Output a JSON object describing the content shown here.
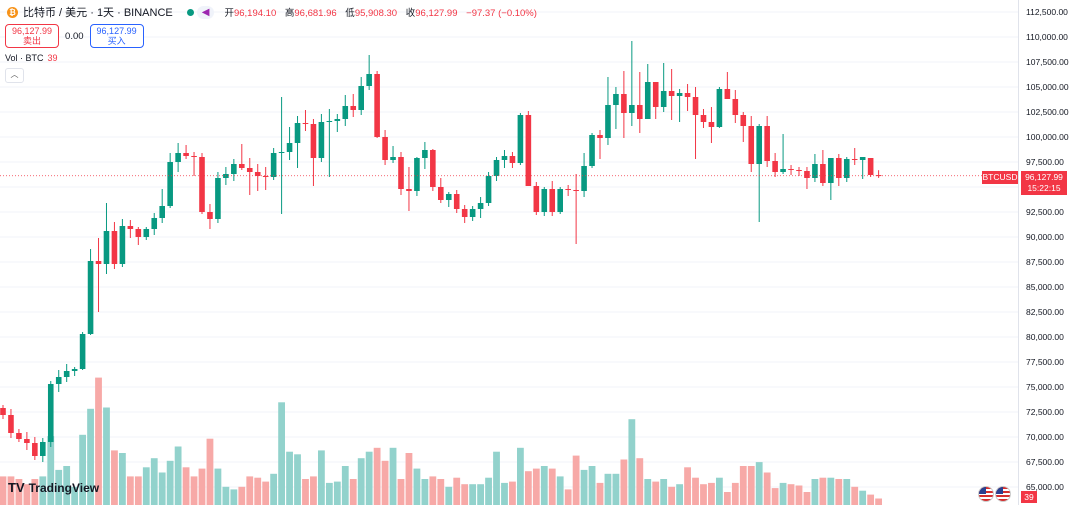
{
  "header": {
    "coin_icon": "bitcoin-icon",
    "symbol": "比特币 / 美元 · 1天 · BINANCE",
    "status_color": "#089981",
    "ohlc": [
      {
        "label": "开",
        "value": "96,194.10"
      },
      {
        "label": "高",
        "value": "96,681.96"
      },
      {
        "label": "低",
        "value": "95,908.30"
      },
      {
        "label": "收",
        "value": "96,127.99"
      }
    ],
    "change": "−97.37 (−0.10%)"
  },
  "trade": {
    "sell_price": "96,127.99",
    "sell_label": "卖出",
    "spread": "0.00",
    "buy_price": "96,127.99",
    "buy_label": "买入"
  },
  "volume_legend": {
    "label": "Vol · BTC",
    "value": "39"
  },
  "price_tag": {
    "symbol": "BTCUSD",
    "price": "96,127.99",
    "countdown": "15:22:15"
  },
  "volume_tag": "39",
  "logo": {
    "mark": "TV",
    "text": "TradingView"
  },
  "colors": {
    "up": "#089981",
    "down": "#f23645",
    "up_volume": "#92d2cc",
    "down_volume": "#f7a9a7",
    "grid": "#f0f3fa"
  },
  "chart_data": {
    "type": "candlestick",
    "series": "BTC/USD 1D",
    "y_ticks": [
      "112,500.00",
      "110,000.00",
      "107,500.00",
      "105,000.00",
      "102,500.00",
      "100,000.00",
      "97,500.00",
      "95,000.00",
      "92,500.00",
      "90,000.00",
      "87,500.00",
      "85,000.00",
      "82,500.00",
      "80,000.00",
      "77,500.00",
      "75,000.00",
      "72,500.00",
      "70,000.00",
      "67,500.00",
      "65,000.00"
    ],
    "ylim": [
      63200,
      113700
    ],
    "last_price": 96127.99,
    "candles": [
      {
        "o": 72900,
        "h": 73200,
        "l": 71800,
        "c": 72200,
        "v": 0.22
      },
      {
        "o": 72200,
        "h": 72800,
        "l": 69900,
        "c": 70400,
        "v": 0.22
      },
      {
        "o": 70400,
        "h": 70800,
        "l": 69500,
        "c": 69800,
        "v": 0.2
      },
      {
        "o": 69800,
        "h": 70500,
        "l": 68700,
        "c": 69400,
        "v": 0.16
      },
      {
        "o": 69400,
        "h": 70000,
        "l": 67700,
        "c": 68100,
        "v": 0.2
      },
      {
        "o": 68100,
        "h": 69900,
        "l": 67500,
        "c": 69500,
        "v": 0.22
      },
      {
        "o": 69500,
        "h": 75600,
        "l": 69000,
        "c": 75300,
        "v": 0.53
      },
      {
        "o": 75300,
        "h": 76700,
        "l": 74500,
        "c": 76000,
        "v": 0.27
      },
      {
        "o": 76000,
        "h": 77300,
        "l": 75500,
        "c": 76600,
        "v": 0.3
      },
      {
        "o": 76600,
        "h": 77000,
        "l": 76100,
        "c": 76800,
        "v": 0.14
      },
      {
        "o": 76800,
        "h": 80500,
        "l": 76700,
        "c": 80300,
        "v": 0.54
      },
      {
        "o": 80300,
        "h": 88800,
        "l": 80200,
        "c": 87600,
        "v": 0.74
      },
      {
        "o": 87600,
        "h": 89900,
        "l": 82500,
        "c": 87300,
        "v": 0.98
      },
      {
        "o": 87300,
        "h": 93400,
        "l": 86300,
        "c": 90600,
        "v": 0.75
      },
      {
        "o": 90600,
        "h": 91500,
        "l": 86800,
        "c": 87300,
        "v": 0.42
      },
      {
        "o": 87300,
        "h": 91800,
        "l": 87000,
        "c": 91100,
        "v": 0.4
      },
      {
        "o": 91100,
        "h": 91700,
        "l": 89900,
        "c": 90800,
        "v": 0.22
      },
      {
        "o": 90800,
        "h": 91000,
        "l": 89200,
        "c": 90000,
        "v": 0.22
      },
      {
        "o": 90000,
        "h": 91000,
        "l": 89700,
        "c": 90800,
        "v": 0.29
      },
      {
        "o": 90800,
        "h": 92400,
        "l": 90200,
        "c": 91900,
        "v": 0.36
      },
      {
        "o": 91900,
        "h": 94800,
        "l": 91400,
        "c": 93100,
        "v": 0.25
      },
      {
        "o": 93100,
        "h": 98400,
        "l": 92900,
        "c": 97500,
        "v": 0.34
      },
      {
        "o": 97500,
        "h": 99400,
        "l": 96500,
        "c": 98400,
        "v": 0.45
      },
      {
        "o": 98400,
        "h": 99200,
        "l": 97800,
        "c": 98100,
        "v": 0.29
      },
      {
        "o": 98100,
        "h": 98500,
        "l": 96100,
        "c": 98000,
        "v": 0.22
      },
      {
        "o": 98000,
        "h": 98400,
        "l": 92300,
        "c": 92500,
        "v": 0.28
      },
      {
        "o": 92500,
        "h": 93300,
        "l": 90800,
        "c": 91800,
        "v": 0.51
      },
      {
        "o": 91800,
        "h": 96500,
        "l": 91400,
        "c": 95900,
        "v": 0.28
      },
      {
        "o": 95900,
        "h": 97000,
        "l": 95200,
        "c": 96300,
        "v": 0.14
      },
      {
        "o": 96300,
        "h": 97800,
        "l": 95600,
        "c": 97300,
        "v": 0.12
      },
      {
        "o": 97300,
        "h": 99300,
        "l": 96700,
        "c": 96900,
        "v": 0.14
      },
      {
        "o": 96900,
        "h": 97900,
        "l": 94200,
        "c": 96500,
        "v": 0.22
      },
      {
        "o": 96500,
        "h": 97300,
        "l": 94600,
        "c": 96100,
        "v": 0.21
      },
      {
        "o": 96100,
        "h": 97000,
        "l": 94700,
        "c": 96000,
        "v": 0.18
      },
      {
        "o": 96000,
        "h": 98900,
        "l": 95700,
        "c": 98400,
        "v": 0.24
      },
      {
        "o": 98400,
        "h": 104000,
        "l": 92300,
        "c": 98500,
        "v": 0.79
      },
      {
        "o": 98500,
        "h": 101000,
        "l": 97700,
        "c": 99400,
        "v": 0.41
      },
      {
        "o": 99400,
        "h": 102100,
        "l": 96900,
        "c": 101400,
        "v": 0.39
      },
      {
        "o": 101400,
        "h": 102700,
        "l": 100600,
        "c": 101300,
        "v": 0.2
      },
      {
        "o": 101300,
        "h": 101800,
        "l": 95100,
        "c": 97900,
        "v": 0.22
      },
      {
        "o": 97900,
        "h": 102300,
        "l": 97500,
        "c": 101500,
        "v": 0.42
      },
      {
        "o": 101500,
        "h": 102800,
        "l": 96000,
        "c": 101600,
        "v": 0.17
      },
      {
        "o": 101600,
        "h": 102300,
        "l": 100500,
        "c": 101800,
        "v": 0.18
      },
      {
        "o": 101800,
        "h": 104200,
        "l": 101100,
        "c": 103100,
        "v": 0.3
      },
      {
        "o": 103100,
        "h": 104300,
        "l": 102000,
        "c": 102700,
        "v": 0.2
      },
      {
        "o": 102700,
        "h": 106000,
        "l": 102200,
        "c": 105100,
        "v": 0.36
      },
      {
        "o": 105100,
        "h": 108200,
        "l": 104700,
        "c": 106300,
        "v": 0.41
      },
      {
        "o": 106300,
        "h": 106600,
        "l": 99900,
        "c": 100000,
        "v": 0.44
      },
      {
        "o": 100000,
        "h": 100700,
        "l": 97200,
        "c": 97700,
        "v": 0.34
      },
      {
        "o": 97700,
        "h": 99100,
        "l": 97400,
        "c": 98000,
        "v": 0.44
      },
      {
        "o": 98000,
        "h": 98500,
        "l": 94200,
        "c": 94800,
        "v": 0.2
      },
      {
        "o": 94800,
        "h": 97000,
        "l": 92600,
        "c": 94600,
        "v": 0.4
      },
      {
        "o": 94600,
        "h": 98000,
        "l": 94100,
        "c": 97900,
        "v": 0.28
      },
      {
        "o": 97900,
        "h": 99500,
        "l": 96800,
        "c": 98700,
        "v": 0.2
      },
      {
        "o": 98700,
        "h": 98800,
        "l": 94600,
        "c": 95000,
        "v": 0.22
      },
      {
        "o": 95000,
        "h": 95900,
        "l": 93400,
        "c": 93700,
        "v": 0.2
      },
      {
        "o": 93700,
        "h": 94500,
        "l": 93000,
        "c": 94300,
        "v": 0.14
      },
      {
        "o": 94300,
        "h": 94700,
        "l": 92400,
        "c": 92800,
        "v": 0.21
      },
      {
        "o": 92800,
        "h": 93200,
        "l": 91400,
        "c": 92000,
        "v": 0.16
      },
      {
        "o": 92000,
        "h": 93100,
        "l": 91600,
        "c": 92800,
        "v": 0.16
      },
      {
        "o": 92800,
        "h": 94000,
        "l": 91900,
        "c": 93400,
        "v": 0.16
      },
      {
        "o": 93400,
        "h": 96500,
        "l": 93100,
        "c": 96100,
        "v": 0.21
      },
      {
        "o": 96100,
        "h": 98000,
        "l": 95600,
        "c": 97700,
        "v": 0.41
      },
      {
        "o": 97700,
        "h": 98700,
        "l": 96900,
        "c": 98100,
        "v": 0.17
      },
      {
        "o": 98100,
        "h": 98500,
        "l": 96900,
        "c": 97400,
        "v": 0.18
      },
      {
        "o": 97400,
        "h": 102400,
        "l": 97200,
        "c": 102200,
        "v": 0.44
      },
      {
        "o": 102200,
        "h": 102600,
        "l": 95100,
        "c": 95100,
        "v": 0.26
      },
      {
        "o": 95100,
        "h": 95500,
        "l": 92200,
        "c": 92500,
        "v": 0.28
      },
      {
        "o": 92500,
        "h": 95000,
        "l": 92100,
        "c": 94800,
        "v": 0.3
      },
      {
        "o": 94800,
        "h": 95600,
        "l": 92100,
        "c": 92500,
        "v": 0.28
      },
      {
        "o": 92500,
        "h": 95000,
        "l": 92300,
        "c": 94800,
        "v": 0.22
      },
      {
        "o": 94800,
        "h": 95200,
        "l": 94100,
        "c": 94700,
        "v": 0.12
      },
      {
        "o": 94700,
        "h": 96300,
        "l": 89300,
        "c": 94600,
        "v": 0.38
      },
      {
        "o": 94600,
        "h": 98400,
        "l": 94000,
        "c": 97100,
        "v": 0.27
      },
      {
        "o": 97100,
        "h": 100400,
        "l": 96900,
        "c": 100200,
        "v": 0.3
      },
      {
        "o": 100200,
        "h": 100700,
        "l": 97800,
        "c": 99900,
        "v": 0.17
      },
      {
        "o": 99900,
        "h": 106000,
        "l": 99200,
        "c": 103200,
        "v": 0.24
      },
      {
        "o": 103200,
        "h": 105000,
        "l": 100800,
        "c": 104300,
        "v": 0.24
      },
      {
        "o": 104300,
        "h": 106600,
        "l": 99900,
        "c": 102400,
        "v": 0.35
      },
      {
        "o": 102400,
        "h": 109600,
        "l": 101100,
        "c": 103200,
        "v": 0.66
      },
      {
        "o": 103200,
        "h": 106500,
        "l": 100400,
        "c": 101800,
        "v": 0.36
      },
      {
        "o": 101800,
        "h": 107300,
        "l": 102100,
        "c": 105500,
        "v": 0.2
      },
      {
        "o": 105500,
        "h": 105500,
        "l": 101800,
        "c": 103000,
        "v": 0.18
      },
      {
        "o": 103000,
        "h": 107400,
        "l": 102500,
        "c": 104600,
        "v": 0.2
      },
      {
        "o": 104600,
        "h": 106800,
        "l": 101700,
        "c": 104100,
        "v": 0.14
      },
      {
        "o": 104100,
        "h": 104800,
        "l": 101500,
        "c": 104400,
        "v": 0.16
      },
      {
        "o": 104400,
        "h": 105300,
        "l": 102600,
        "c": 104000,
        "v": 0.29
      },
      {
        "o": 104000,
        "h": 105000,
        "l": 97800,
        "c": 102200,
        "v": 0.21
      },
      {
        "o": 102200,
        "h": 102800,
        "l": 100900,
        "c": 101500,
        "v": 0.16
      },
      {
        "o": 101500,
        "h": 103000,
        "l": 99400,
        "c": 101000,
        "v": 0.17
      },
      {
        "o": 101000,
        "h": 105000,
        "l": 100900,
        "c": 104800,
        "v": 0.21
      },
      {
        "o": 104800,
        "h": 106500,
        "l": 103800,
        "c": 103800,
        "v": 0.1
      },
      {
        "o": 103800,
        "h": 104700,
        "l": 101400,
        "c": 102200,
        "v": 0.17
      },
      {
        "o": 102200,
        "h": 102500,
        "l": 99500,
        "c": 101100,
        "v": 0.3
      },
      {
        "o": 101100,
        "h": 102100,
        "l": 96500,
        "c": 97300,
        "v": 0.3
      },
      {
        "o": 97300,
        "h": 101300,
        "l": 91500,
        "c": 101100,
        "v": 0.33
      },
      {
        "o": 101100,
        "h": 102100,
        "l": 97000,
        "c": 97600,
        "v": 0.25
      },
      {
        "o": 97600,
        "h": 98400,
        "l": 96000,
        "c": 96500,
        "v": 0.13
      },
      {
        "o": 96500,
        "h": 100300,
        "l": 96300,
        "c": 96800,
        "v": 0.17
      },
      {
        "o": 96800,
        "h": 97200,
        "l": 96200,
        "c": 96700,
        "v": 0.16
      },
      {
        "o": 96700,
        "h": 97000,
        "l": 96100,
        "c": 96600,
        "v": 0.15
      },
      {
        "o": 96600,
        "h": 97000,
        "l": 94800,
        "c": 95900,
        "v": 0.1
      },
      {
        "o": 95900,
        "h": 98300,
        "l": 95500,
        "c": 97300,
        "v": 0.2
      },
      {
        "o": 97300,
        "h": 98700,
        "l": 95100,
        "c": 95400,
        "v": 0.21
      },
      {
        "o": 95400,
        "h": 97800,
        "l": 93700,
        "c": 97900,
        "v": 0.21
      },
      {
        "o": 97900,
        "h": 98300,
        "l": 95100,
        "c": 95900,
        "v": 0.2
      },
      {
        "o": 95900,
        "h": 98000,
        "l": 95500,
        "c": 97800,
        "v": 0.2
      },
      {
        "o": 97800,
        "h": 98900,
        "l": 97200,
        "c": 97700,
        "v": 0.14
      },
      {
        "o": 97700,
        "h": 97800,
        "l": 95800,
        "c": 98000,
        "v": 0.11
      },
      {
        "o": 97900,
        "h": 97900,
        "l": 96000,
        "c": 96200,
        "v": 0.08
      },
      {
        "o": 96194.1,
        "h": 96681.96,
        "l": 95908.3,
        "c": 96127.99,
        "v": 0.05
      }
    ]
  }
}
